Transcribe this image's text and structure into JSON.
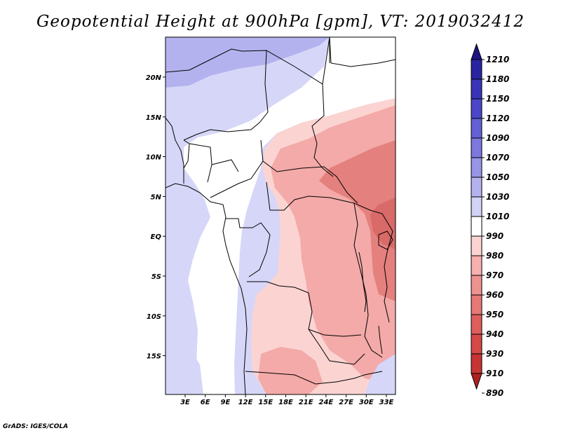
{
  "title": "Geopotential Height at 900hPa [gpm], VT: 2019032412",
  "credit": "GrADS: IGES/COLA",
  "map": {
    "lon_labels": [
      "3E",
      "6E",
      "9E",
      "12E",
      "15E",
      "18E",
      "21E",
      "24E",
      "27E",
      "30E",
      "33E"
    ],
    "lat_labels": [
      "20N",
      "15N",
      "10N",
      "5N",
      "EQ",
      "5S",
      "10S",
      "15S"
    ]
  },
  "colorbar": {
    "levels": [
      "1210",
      "1180",
      "1150",
      "1120",
      "1090",
      "1070",
      "1050",
      "1030",
      "1010",
      "990",
      "980",
      "970",
      "960",
      "950",
      "940",
      "930",
      "910",
      "890"
    ],
    "colors": [
      "#1e1481",
      "#2a24a0",
      "#3a34b8",
      "#4b46c8",
      "#6460d4",
      "#7c78de",
      "#9894e6",
      "#b4b2ee",
      "#d2d2f6",
      "#ffffff",
      "#fbd4d2",
      "#f6b0ae",
      "#ee9290",
      "#e67876",
      "#de5e5c",
      "#d44848",
      "#c63434",
      "#ae2020"
    ]
  },
  "legend_colors": {
    "blue_light": "#d6d6f8",
    "blue_mid": "#b4b2ee",
    "neutral": "#ffffff",
    "red_light": "#fbd4d2",
    "red_mid": "#f3aaa8",
    "red_deep": "#e4807e"
  }
}
